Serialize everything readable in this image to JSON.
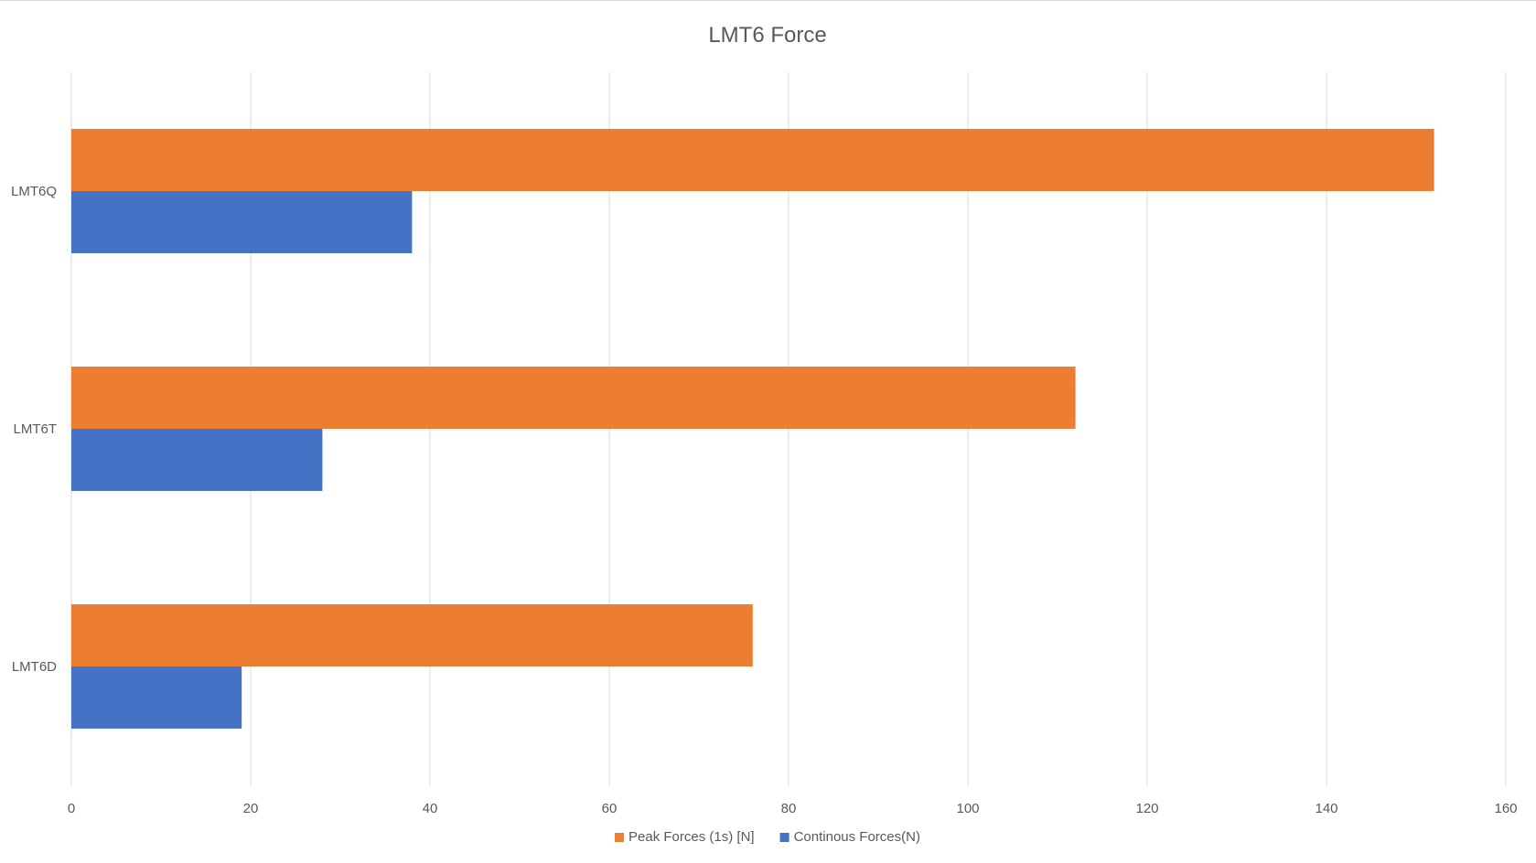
{
  "chart_data": {
    "type": "bar",
    "orientation": "horizontal",
    "title": "LMT6 Force",
    "xlabel": "",
    "ylabel": "",
    "categories": [
      "LMT6Q",
      "LMT6T",
      "LMT6D"
    ],
    "series": [
      {
        "name": "Peak Forces (1s) [N]",
        "color": "#ED7D31",
        "values": [
          152,
          112,
          76
        ]
      },
      {
        "name": "Continous Forces(N)",
        "color": "#4472C4",
        "values": [
          38,
          28,
          19
        ]
      }
    ],
    "xlim": [
      0,
      160
    ],
    "xticks": [
      0,
      20,
      40,
      60,
      80,
      100,
      120,
      140,
      160
    ],
    "grid": true,
    "legend_position": "bottom"
  }
}
